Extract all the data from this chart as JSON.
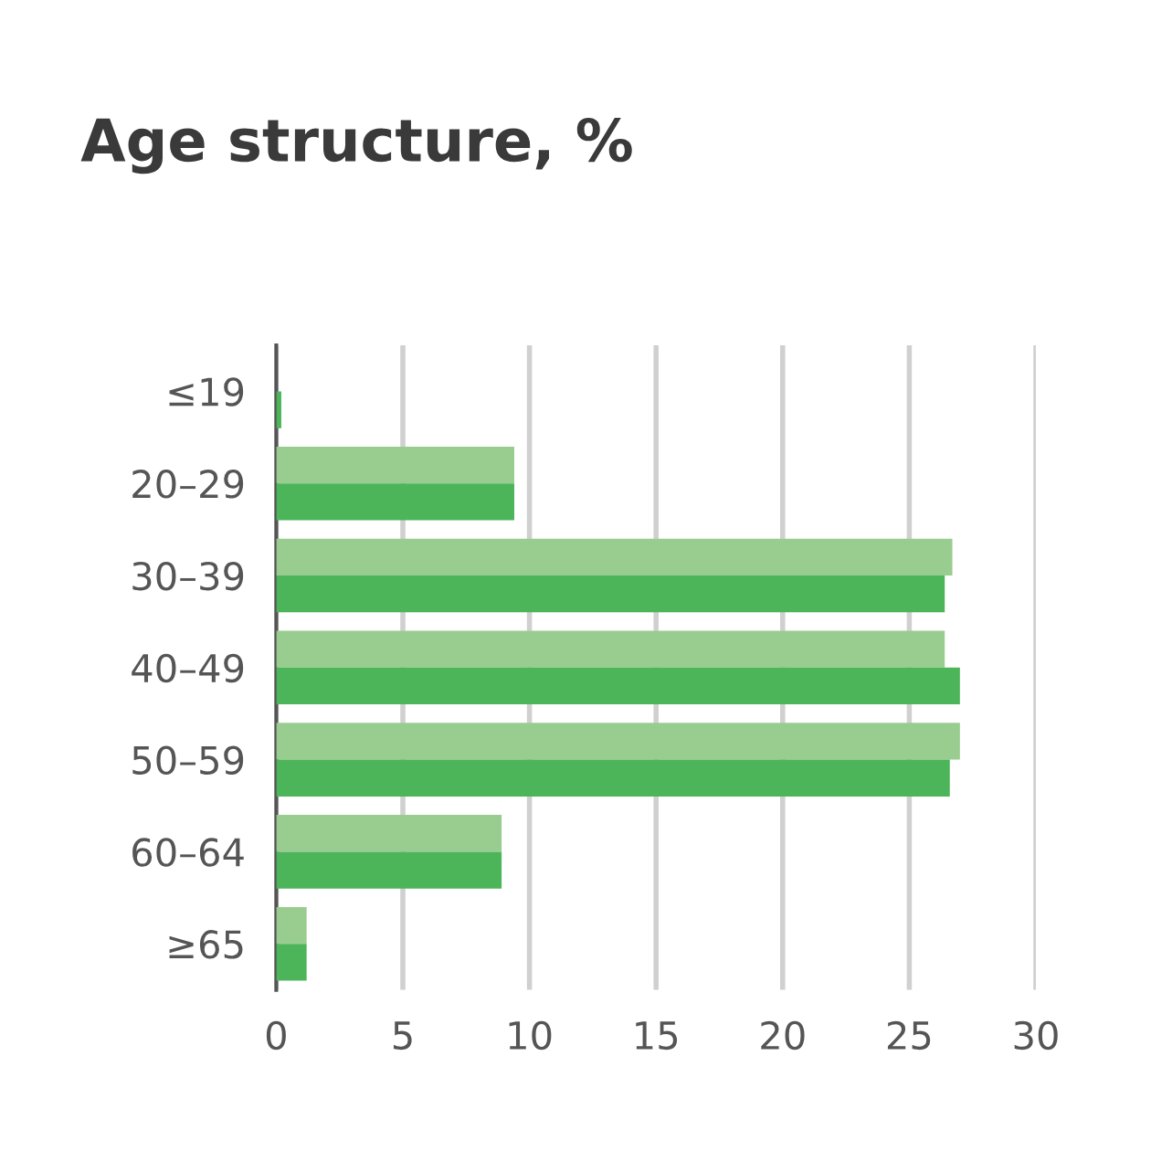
{
  "chart_data": {
    "type": "bar",
    "orientation": "horizontal",
    "title": "Age structure, %",
    "categories": [
      "≤19",
      "20–29",
      "30–39",
      "40–49",
      "50–59",
      "60–64",
      "≥65"
    ],
    "series": [
      {
        "color": "#99cc8f",
        "values": [
          null,
          9.4,
          26.7,
          26.4,
          27.0,
          8.9,
          1.2
        ]
      },
      {
        "color": "#4cb55a",
        "values": [
          0.2,
          9.4,
          26.4,
          27.0,
          26.6,
          8.9,
          1.2
        ]
      }
    ],
    "xlim": [
      0,
      30
    ],
    "xticks": [
      0,
      5,
      10,
      15,
      20,
      25,
      30
    ],
    "grid": "x",
    "legend": false
  }
}
